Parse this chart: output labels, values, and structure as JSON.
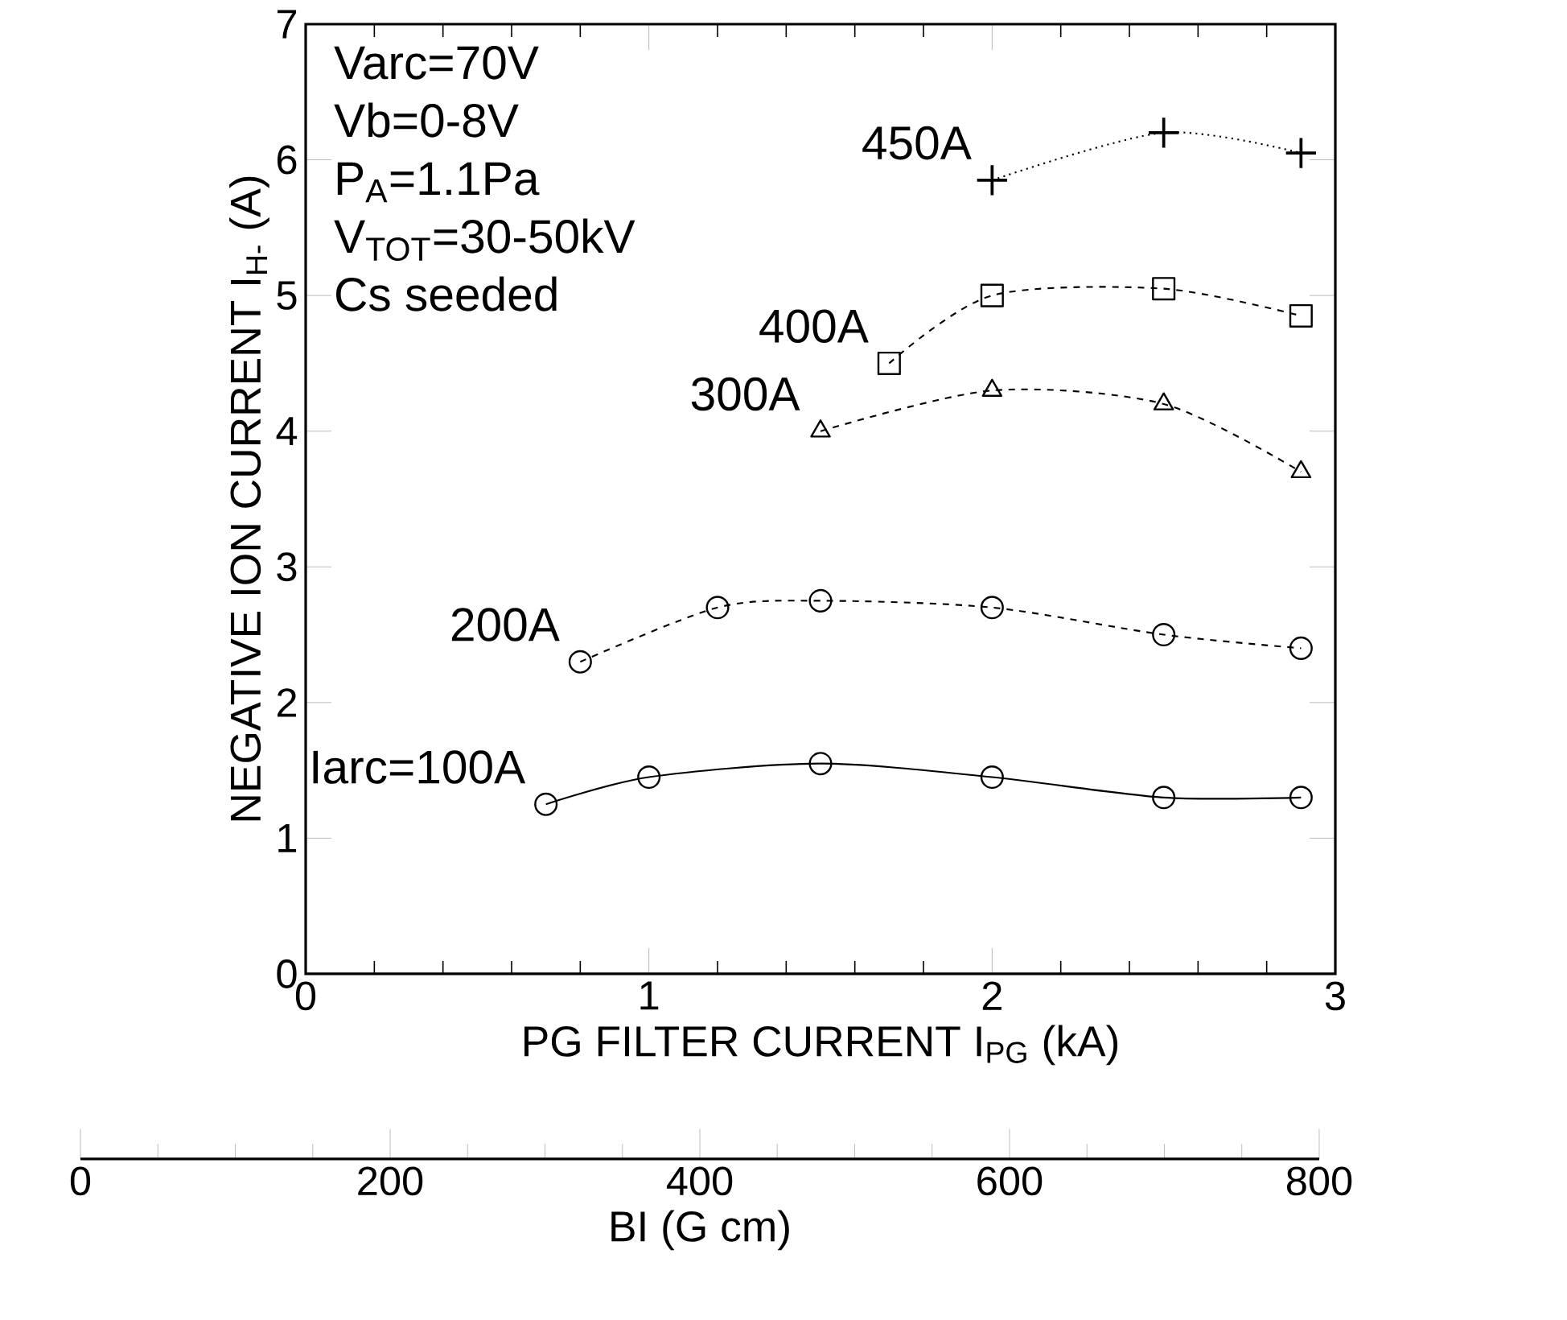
{
  "chart_data": {
    "type": "line",
    "xlabel": "PG FILTER CURRENT I$_{PG}$ (kA)",
    "ylabel": "NEGATIVE ION CURRENT I$_{H-}$ (A)",
    "x2label": "BI (G cm)",
    "xlim": [
      0,
      3
    ],
    "xticks": [
      0,
      1,
      2,
      3
    ],
    "ylim": [
      0,
      7
    ],
    "yticks": [
      0,
      1,
      2,
      3,
      4,
      5,
      6,
      7
    ],
    "x2lim": [
      0,
      800
    ],
    "x2ticks": [
      0,
      200,
      400,
      600,
      800
    ],
    "annotations": [
      "Varc=70V",
      "Vb=0-8V",
      "P$_{A}$=1.1Pa",
      "V$_{TOT}$=30-50kV",
      "Cs seeded"
    ],
    "series": [
      {
        "name": "Iarc=100A",
        "color": "#000000",
        "marker": "circle",
        "line_style": "solid",
        "x": [
          0.7,
          1.0,
          1.5,
          2.0,
          2.5,
          2.9
        ],
        "values": [
          1.25,
          1.45,
          1.55,
          1.45,
          1.3,
          1.3
        ]
      },
      {
        "name": "200A",
        "color": "#000000",
        "marker": "circle",
        "line_style": "dashed",
        "x": [
          0.8,
          1.2,
          1.5,
          2.0,
          2.5,
          2.9
        ],
        "values": [
          2.3,
          2.7,
          2.75,
          2.7,
          2.5,
          2.4
        ]
      },
      {
        "name": "300A",
        "color": "#000000",
        "marker": "triangle",
        "line_style": "dashed",
        "x": [
          1.5,
          2.0,
          2.5,
          2.9
        ],
        "values": [
          4.0,
          4.3,
          4.2,
          3.7
        ]
      },
      {
        "name": "400A",
        "color": "#000000",
        "marker": "square",
        "line_style": "dashed",
        "x": [
          1.7,
          2.0,
          2.5,
          2.9
        ],
        "values": [
          4.5,
          5.0,
          5.05,
          4.85
        ]
      },
      {
        "name": "450A",
        "color": "#000000",
        "marker": "cross",
        "line_style": "dotted",
        "x": [
          2.0,
          2.5,
          2.9
        ],
        "values": [
          5.85,
          6.2,
          6.05
        ]
      }
    ]
  }
}
